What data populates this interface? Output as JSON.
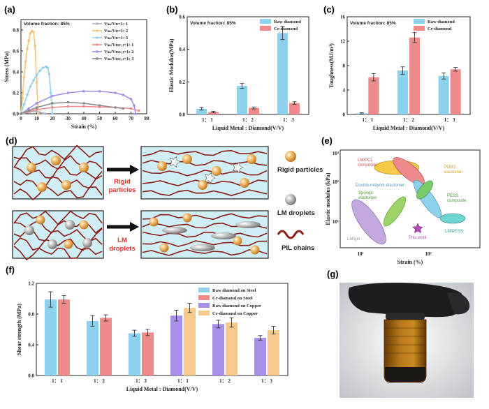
{
  "panel_labels": {
    "a": "(a)",
    "b": "(b)",
    "c": "(c)",
    "d": "(d)",
    "e": "(e)",
    "f": "(f)",
    "g": "(g)"
  },
  "volume_fraction_text": "Volume fraction: 85%",
  "xlabel_ratio": "Liquid Metal : Diamond(V/V)",
  "colors": {
    "raw": "#8ed1ec",
    "cr": "#ef8a8a",
    "raw_cu": "#a78ee6",
    "cr_cu": "#f6c98d",
    "chain": "#8b1c14",
    "box": "#cfeef5"
  },
  "chart_data": [
    {
      "id": "a",
      "type": "line",
      "xlabel": "Strain (%)",
      "ylabel": "Stress (MPa)",
      "xlim": [
        0,
        80
      ],
      "ylim": [
        0,
        0.9
      ],
      "xticks": [
        "0",
        "10",
        "20",
        "30",
        "40",
        "50",
        "60",
        "70",
        "80"
      ],
      "yticks": [
        "0.0",
        "0.2",
        "0.4",
        "0.6",
        "0.8"
      ],
      "series": [
        {
          "name": "Vₗₘ/Vᴅ=1: 1",
          "color": "#b0b0c8",
          "x": [
            0,
            2,
            4,
            6,
            8,
            10,
            12,
            14,
            15.5
          ],
          "y": [
            0,
            0.008,
            0.016,
            0.022,
            0.025,
            0.022,
            0.014,
            0.004,
            0
          ]
        },
        {
          "name": "Vₗₘ/Vᴅ=1: 2",
          "color": "#f4c37d",
          "x": [
            0,
            1,
            2,
            3,
            4,
            5,
            6,
            7,
            8,
            9,
            10,
            11
          ],
          "y": [
            0,
            0.15,
            0.35,
            0.5,
            0.62,
            0.7,
            0.77,
            0.79,
            0.78,
            0.65,
            0.3,
            0
          ]
        },
        {
          "name": "Vₗₘ/Vᴅ=1: 3",
          "color": "#8fd0ec",
          "x": [
            0,
            2,
            4,
            6,
            8,
            10,
            12,
            14,
            16,
            17,
            18,
            19,
            20
          ],
          "y": [
            0,
            0.09,
            0.18,
            0.26,
            0.32,
            0.37,
            0.41,
            0.44,
            0.45,
            0.44,
            0.38,
            0.2,
            0
          ]
        },
        {
          "name": "Vₗₘ/Vᴅ₍ᴄᵣ₎=1: 1",
          "color": "#ef8a8a",
          "x": [
            0,
            5,
            10,
            20,
            30,
            40,
            50,
            60,
            70,
            75
          ],
          "y": [
            0,
            0.02,
            0.04,
            0.06,
            0.07,
            0.07,
            0.065,
            0.06,
            0.05,
            0.03
          ]
        },
        {
          "name": "Vₗₘ/Vᴅ₍ᴄᵣ₎=1: 2",
          "color": "#a78ee6",
          "x": [
            0,
            5,
            10,
            20,
            30,
            40,
            50,
            60,
            65,
            70,
            72,
            73
          ],
          "y": [
            0,
            0.05,
            0.1,
            0.17,
            0.2,
            0.215,
            0.215,
            0.2,
            0.18,
            0.14,
            0.08,
            0
          ]
        },
        {
          "name": "Vₗₘ/Vᴅ₍ᴄᵣ₎=1: 3",
          "color": "#8a8a8a",
          "x": [
            0,
            5,
            10,
            20,
            30,
            40,
            50,
            60,
            65
          ],
          "y": [
            0,
            0.03,
            0.06,
            0.1,
            0.11,
            0.1,
            0.08,
            0.06,
            0.05
          ]
        }
      ]
    },
    {
      "id": "b",
      "type": "bar",
      "categories": [
        "1： 1",
        "1： 2",
        "1： 3"
      ],
      "ylabel": "Elastic Modulus(MPa)",
      "xlabel": "Liquid Metal : Diamond(V/V)",
      "ylim": [
        0,
        0.6
      ],
      "yticks": [
        "0.0",
        "0.2",
        "0.4",
        "0.6"
      ],
      "series": [
        {
          "name": "Raw diamond",
          "color": "#8ed1ec",
          "values": [
            0.035,
            0.175,
            0.5
          ],
          "errors": [
            0.008,
            0.015,
            0.04
          ]
        },
        {
          "name": "Cr-diamond",
          "color": "#ef8a8a",
          "values": [
            0.015,
            0.04,
            0.07
          ],
          "errors": [
            0.004,
            0.006,
            0.008
          ]
        }
      ]
    },
    {
      "id": "c",
      "type": "bar",
      "categories": [
        "1： 1",
        "1： 2",
        "1： 3"
      ],
      "ylabel": "Toughness(MJ/m³)",
      "xlabel": "Liquid Metal : Diamond(V/V)",
      "ylim": [
        0,
        16
      ],
      "yticks": [
        "0",
        "4",
        "8",
        "12",
        "16"
      ],
      "series": [
        {
          "name": "Raw diamond",
          "color": "#8ed1ec",
          "values": [
            0.2,
            7.2,
            6.3
          ],
          "errors": [
            0.1,
            0.6,
            0.5
          ]
        },
        {
          "name": "Cr-diamond",
          "color": "#ef8a8a",
          "values": [
            6.1,
            12.6,
            7.4
          ],
          "errors": [
            0.6,
            0.8,
            0.3
          ]
        }
      ]
    },
    {
      "id": "e",
      "type": "scatter",
      "xlabel": "Strain (%)",
      "ylabel": "Elastic modulus (kPa)",
      "xscale": "log",
      "yscale": "log",
      "xticks": [
        "10¹",
        "10²"
      ],
      "yticks": [
        "10¹",
        "10²",
        "10³"
      ],
      "regions": [
        {
          "label": "LM/PCL composite",
          "color": "#ef8a8a"
        },
        {
          "label": "PDBS elastomer",
          "color": "#f7c948"
        },
        {
          "label": "Double-network elastomer",
          "color": "#8ed1ec"
        },
        {
          "label": "PESS composite",
          "color": "#7acb6a"
        },
        {
          "label": "Sponge elastomer",
          "color": "#9ed36a"
        },
        {
          "label": "LM/PESS",
          "color": "#6fd3cf"
        },
        {
          "label": "LM/gel",
          "color": "#c4a8e0"
        },
        {
          "label": "This work",
          "color": "#b04ab0"
        }
      ]
    },
    {
      "id": "f",
      "type": "bar",
      "categories": [
        "1： 1",
        "1： 2",
        "1： 3",
        "1： 1",
        "1： 2",
        "1： 3"
      ],
      "ylabel": "Shear strength (MPa)",
      "xlabel": "Liquid Metal : Diamond(V/V)",
      "ylim": [
        0,
        1.2
      ],
      "yticks": [
        "0.0",
        "0.4",
        "0.8",
        "1.2"
      ],
      "series": [
        {
          "name": "Raw diamond on Steel",
          "color": "#8ed1ec",
          "values": [
            0.99,
            0.71,
            0.55,
            null,
            null,
            null
          ],
          "errors": [
            0.1,
            0.07,
            0.04,
            0,
            0,
            0
          ]
        },
        {
          "name": "Cr-diamond on Steel",
          "color": "#ef8a8a",
          "values": [
            0.99,
            0.75,
            0.56,
            null,
            null,
            null
          ],
          "errors": [
            0.05,
            0.04,
            0.04,
            0,
            0,
            0
          ]
        },
        {
          "name": "Raw diamond on Copper",
          "color": "#a78ee6",
          "values": [
            null,
            null,
            null,
            0.78,
            0.67,
            0.49
          ],
          "errors": [
            0,
            0,
            0,
            0.07,
            0.05,
            0.03
          ]
        },
        {
          "name": "Cr-diamond on Copper",
          "color": "#f6c98d",
          "values": [
            null,
            null,
            null,
            0.88,
            0.69,
            0.59
          ],
          "errors": [
            0,
            0,
            0,
            0.06,
            0.06,
            0.05
          ]
        }
      ]
    }
  ],
  "schematic": {
    "rigid_label_1": "Rigid",
    "rigid_label_2": "particles",
    "lm_label_1": "LM",
    "lm_label_2": "droplets",
    "legend_rigid": "Rigid particles",
    "legend_lm": "LM droplets",
    "legend_pil": "PIL chains"
  },
  "ashby_labels": {
    "lmpcl": "LM/PCL",
    "lmpcl2": "composite",
    "pdbs": "PDBS",
    "pdbs2": "elastomer",
    "dn": "Double-network elastomer",
    "pess": "PESS",
    "pess2": "composite",
    "sponge": "Sponge",
    "sponge2": "elastomer",
    "lmpess": "LM/PESS",
    "lmgel": "LM/gel",
    "thiswork": "This work"
  }
}
